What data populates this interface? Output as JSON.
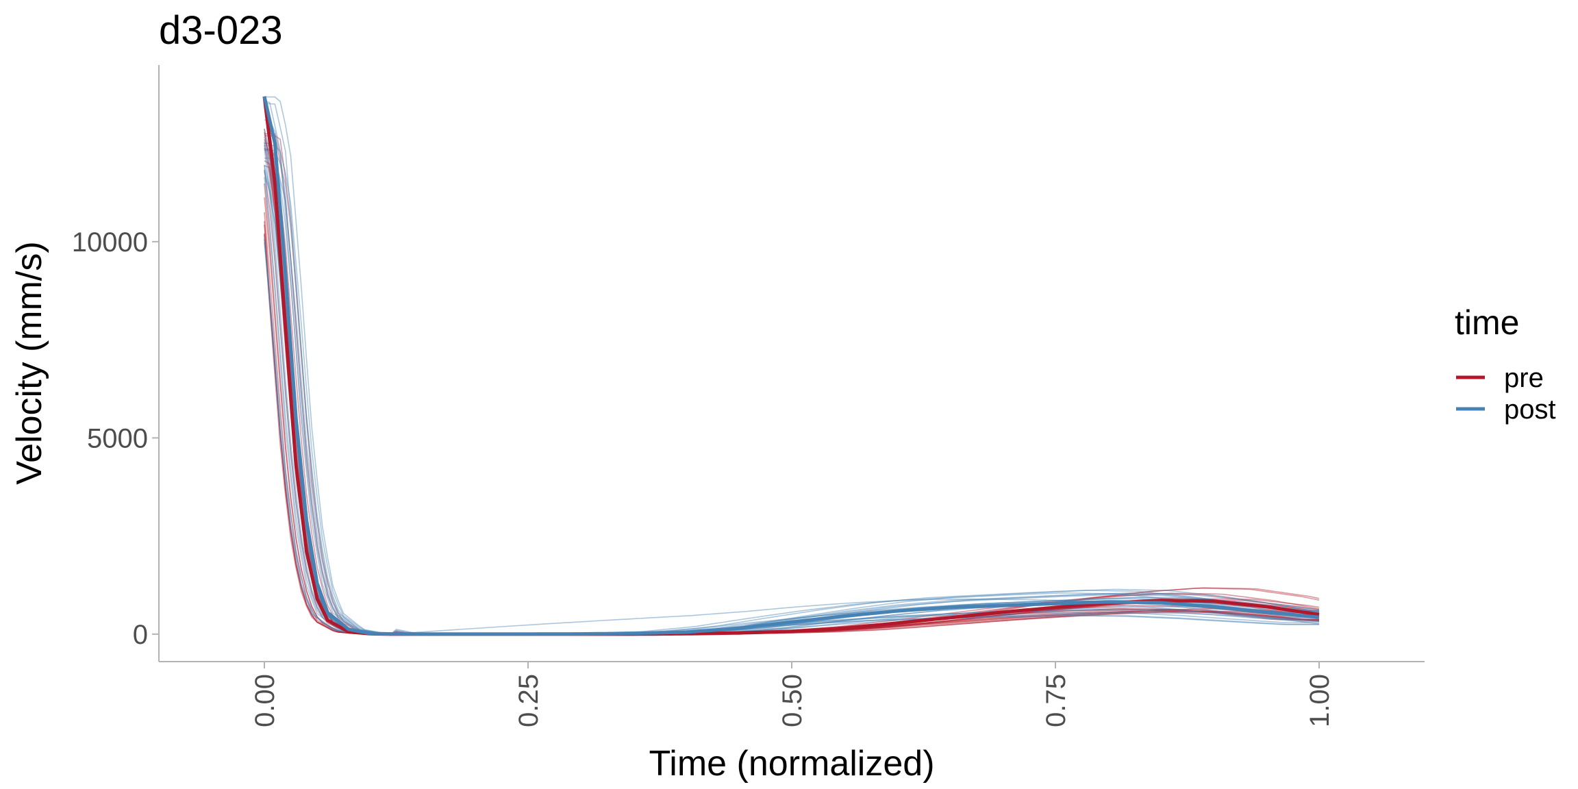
{
  "chart_data": {
    "type": "line",
    "title": "d3-023",
    "xlabel": "Time (normalized)",
    "ylabel": "Velocity (mm/s)",
    "xlim": [
      -0.1,
      1.1
    ],
    "ylim": [
      -700,
      14500
    ],
    "x_ticks": [
      {
        "value": 0.0,
        "label": "0.00"
      },
      {
        "value": 0.25,
        "label": "0.25"
      },
      {
        "value": 0.5,
        "label": "0.50"
      },
      {
        "value": 0.75,
        "label": "0.75"
      },
      {
        "value": 1.0,
        "label": "1.00"
      }
    ],
    "y_ticks": [
      {
        "value": 0,
        "label": "0"
      },
      {
        "value": 5000,
        "label": "5000"
      },
      {
        "value": 10000,
        "label": "10000"
      }
    ],
    "x_tick_rotation": "vertical",
    "grid": false,
    "legend": {
      "title": "time",
      "position": "right",
      "entries": [
        {
          "name": "pre",
          "color": "#b2182b"
        },
        {
          "name": "post",
          "color": "#4682b4"
        }
      ]
    },
    "x": [
      0.0,
      0.01,
      0.02,
      0.03,
      0.04,
      0.05,
      0.06,
      0.08,
      0.1,
      0.12,
      0.15,
      0.2,
      0.25,
      0.3,
      0.35,
      0.4,
      0.45,
      0.5,
      0.55,
      0.6,
      0.65,
      0.7,
      0.75,
      0.8,
      0.85,
      0.9,
      0.95,
      1.0
    ],
    "series": [
      {
        "name": "pre",
        "color": "#b2182b",
        "values": [
          13700,
          11500,
          7800,
          4300,
          2100,
          900,
          350,
          60,
          10,
          0,
          0,
          0,
          0,
          0,
          0,
          10,
          30,
          70,
          150,
          280,
          420,
          560,
          680,
          790,
          860,
          840,
          700,
          500
        ]
      },
      {
        "name": "post",
        "color": "#4682b4",
        "values": [
          13700,
          12500,
          9200,
          5500,
          2900,
          1300,
          550,
          120,
          20,
          5,
          0,
          0,
          0,
          5,
          20,
          50,
          150,
          310,
          460,
          590,
          680,
          730,
          780,
          820,
          800,
          700,
          560,
          430
        ]
      }
    ],
    "trial_lines": {
      "pre": {
        "count": 18,
        "opacity": 0.45
      },
      "post": {
        "count": 22,
        "opacity": 0.45
      }
    }
  }
}
